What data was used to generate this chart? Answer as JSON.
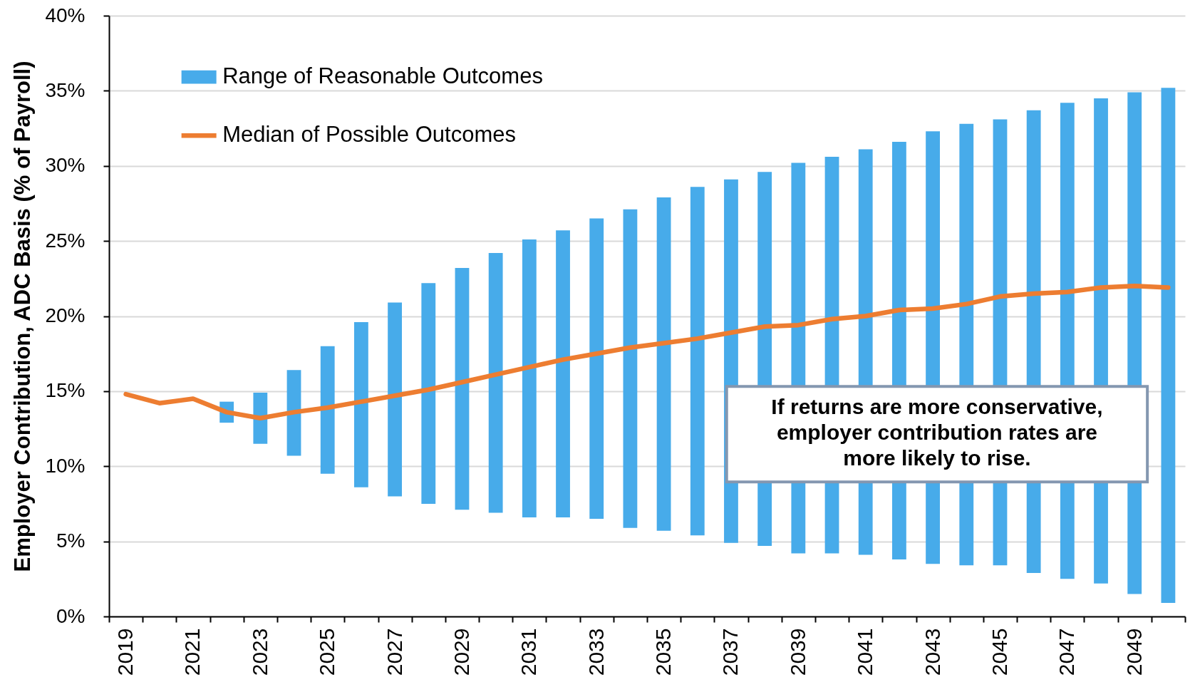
{
  "chart_data": {
    "type": "bar",
    "ylabel": "Employer Contribution, ADC Basis (% of Payroll)",
    "categories": [
      "2019",
      null,
      "2021",
      null,
      "2023",
      null,
      "2025",
      null,
      "2027",
      null,
      "2029",
      null,
      "2031",
      null,
      "2033",
      null,
      "2035",
      null,
      "2037",
      null,
      "2039",
      null,
      "2041",
      null,
      "2043",
      null,
      "2045",
      null,
      "2047",
      null,
      "2049",
      null
    ],
    "series": [
      {
        "name": "Range of Reasonable Outcomes",
        "color": "#47abea",
        "base": [
          null,
          null,
          null,
          12.9,
          11.5,
          10.7,
          9.5,
          8.6,
          8.0,
          7.5,
          7.1,
          6.9,
          6.6,
          6.6,
          6.5,
          5.9,
          5.7,
          5.4,
          4.9,
          4.7,
          4.2,
          4.2,
          4.1,
          3.8,
          3.5,
          3.4,
          3.4,
          2.9,
          2.5,
          2.2,
          1.5,
          0.9
        ],
        "values": [
          null,
          null,
          null,
          1.4,
          3.4,
          5.7,
          8.5,
          11.0,
          12.9,
          14.7,
          16.1,
          17.3,
          18.5,
          19.1,
          20.0,
          21.2,
          22.2,
          23.2,
          24.2,
          24.9,
          26.0,
          26.4,
          27.0,
          27.8,
          28.8,
          29.4,
          29.7,
          30.8,
          31.7,
          32.3,
          33.4,
          34.3
        ]
      },
      {
        "name": "Median of Possible Outcomes",
        "type": "line",
        "color": "#ed7d31",
        "values": [
          14.8,
          14.2,
          14.5,
          13.6,
          13.2,
          13.6,
          13.9,
          14.3,
          14.7,
          15.1,
          15.6,
          16.1,
          16.6,
          17.1,
          17.5,
          17.9,
          18.2,
          18.5,
          18.9,
          19.3,
          19.4,
          19.8,
          20.0,
          20.4,
          20.5,
          20.8,
          21.3,
          21.5,
          21.6,
          21.9,
          22.0,
          21.9
        ]
      }
    ],
    "ylim": [
      0,
      40
    ],
    "yticks": [
      {
        "value": 0,
        "label": "0%"
      },
      {
        "value": 5,
        "label": "5%"
      },
      {
        "value": 10,
        "label": "10%"
      },
      {
        "value": 15,
        "label": "15%"
      },
      {
        "value": 20,
        "label": "20%"
      },
      {
        "value": 25,
        "label": "25%"
      },
      {
        "value": 30,
        "label": "30%"
      },
      {
        "value": 35,
        "label": "35%"
      },
      {
        "value": 40,
        "label": "40%"
      }
    ],
    "grid": "y",
    "legend": "top left",
    "annotations": [
      "If returns are more conservative, employer contribution rates are more likely to rise."
    ]
  }
}
